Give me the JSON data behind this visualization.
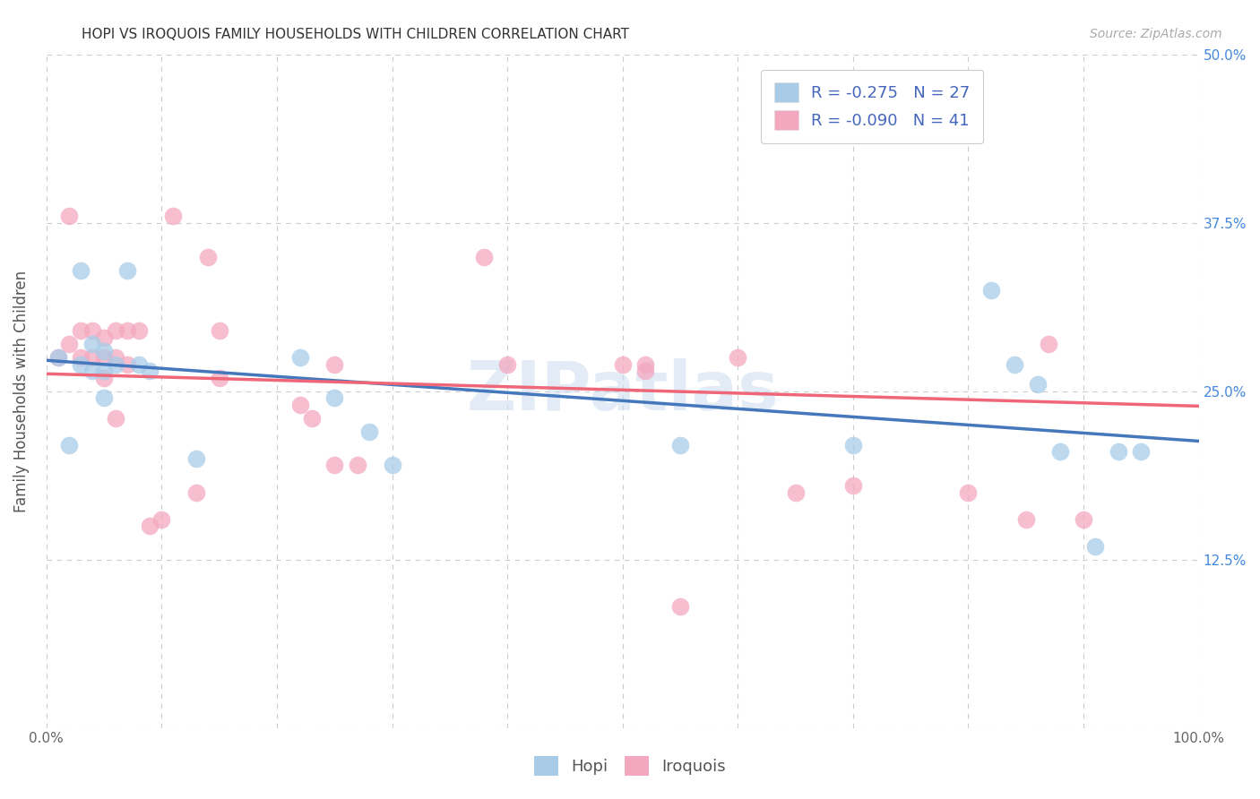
{
  "title": "HOPI VS IROQUOIS FAMILY HOUSEHOLDS WITH CHILDREN CORRELATION CHART",
  "source": "Source: ZipAtlas.com",
  "ylabel": "Family Households with Children",
  "xlim": [
    0,
    1
  ],
  "ylim": [
    0,
    0.5
  ],
  "x_ticks": [
    0.0,
    0.1,
    0.2,
    0.3,
    0.4,
    0.5,
    0.6,
    0.7,
    0.8,
    0.9,
    1.0
  ],
  "y_ticks": [
    0.0,
    0.125,
    0.25,
    0.375,
    0.5
  ],
  "watermark": "ZIPatlas",
  "hopi_color": "#a8cce8",
  "iroquois_color": "#f4a8c0",
  "hopi_line_color": "#4477bb",
  "iroquois_line_color": "#ee6677",
  "hopi_points_x": [
    0.01,
    0.02,
    0.03,
    0.03,
    0.04,
    0.04,
    0.05,
    0.05,
    0.05,
    0.06,
    0.07,
    0.08,
    0.09,
    0.13,
    0.22,
    0.25,
    0.28,
    0.55,
    0.7,
    0.82,
    0.84,
    0.86,
    0.88,
    0.91,
    0.93,
    0.95,
    0.3
  ],
  "hopi_points_y": [
    0.275,
    0.21,
    0.34,
    0.27,
    0.285,
    0.265,
    0.28,
    0.265,
    0.245,
    0.27,
    0.34,
    0.27,
    0.265,
    0.2,
    0.275,
    0.245,
    0.22,
    0.21,
    0.21,
    0.325,
    0.27,
    0.255,
    0.205,
    0.135,
    0.205,
    0.205,
    0.195
  ],
  "iroquois_points_x": [
    0.01,
    0.02,
    0.02,
    0.03,
    0.03,
    0.04,
    0.04,
    0.05,
    0.05,
    0.05,
    0.06,
    0.06,
    0.06,
    0.07,
    0.07,
    0.08,
    0.09,
    0.1,
    0.11,
    0.13,
    0.14,
    0.15,
    0.22,
    0.23,
    0.25,
    0.25,
    0.27,
    0.38,
    0.4,
    0.5,
    0.52,
    0.52,
    0.55,
    0.6,
    0.65,
    0.7,
    0.8,
    0.85,
    0.87,
    0.9,
    0.15
  ],
  "iroquois_points_y": [
    0.275,
    0.285,
    0.38,
    0.295,
    0.275,
    0.295,
    0.275,
    0.29,
    0.275,
    0.26,
    0.295,
    0.275,
    0.23,
    0.295,
    0.27,
    0.295,
    0.15,
    0.155,
    0.38,
    0.175,
    0.35,
    0.295,
    0.24,
    0.23,
    0.27,
    0.195,
    0.195,
    0.35,
    0.27,
    0.27,
    0.27,
    0.265,
    0.09,
    0.275,
    0.175,
    0.18,
    0.175,
    0.155,
    0.285,
    0.155,
    0.26
  ],
  "hopi_R": -0.275,
  "hopi_N": 27,
  "iroquois_R": -0.09,
  "iroquois_N": 41,
  "background_color": "#ffffff",
  "grid_color": "#cccccc",
  "legend_text_color": "#4466bb"
}
